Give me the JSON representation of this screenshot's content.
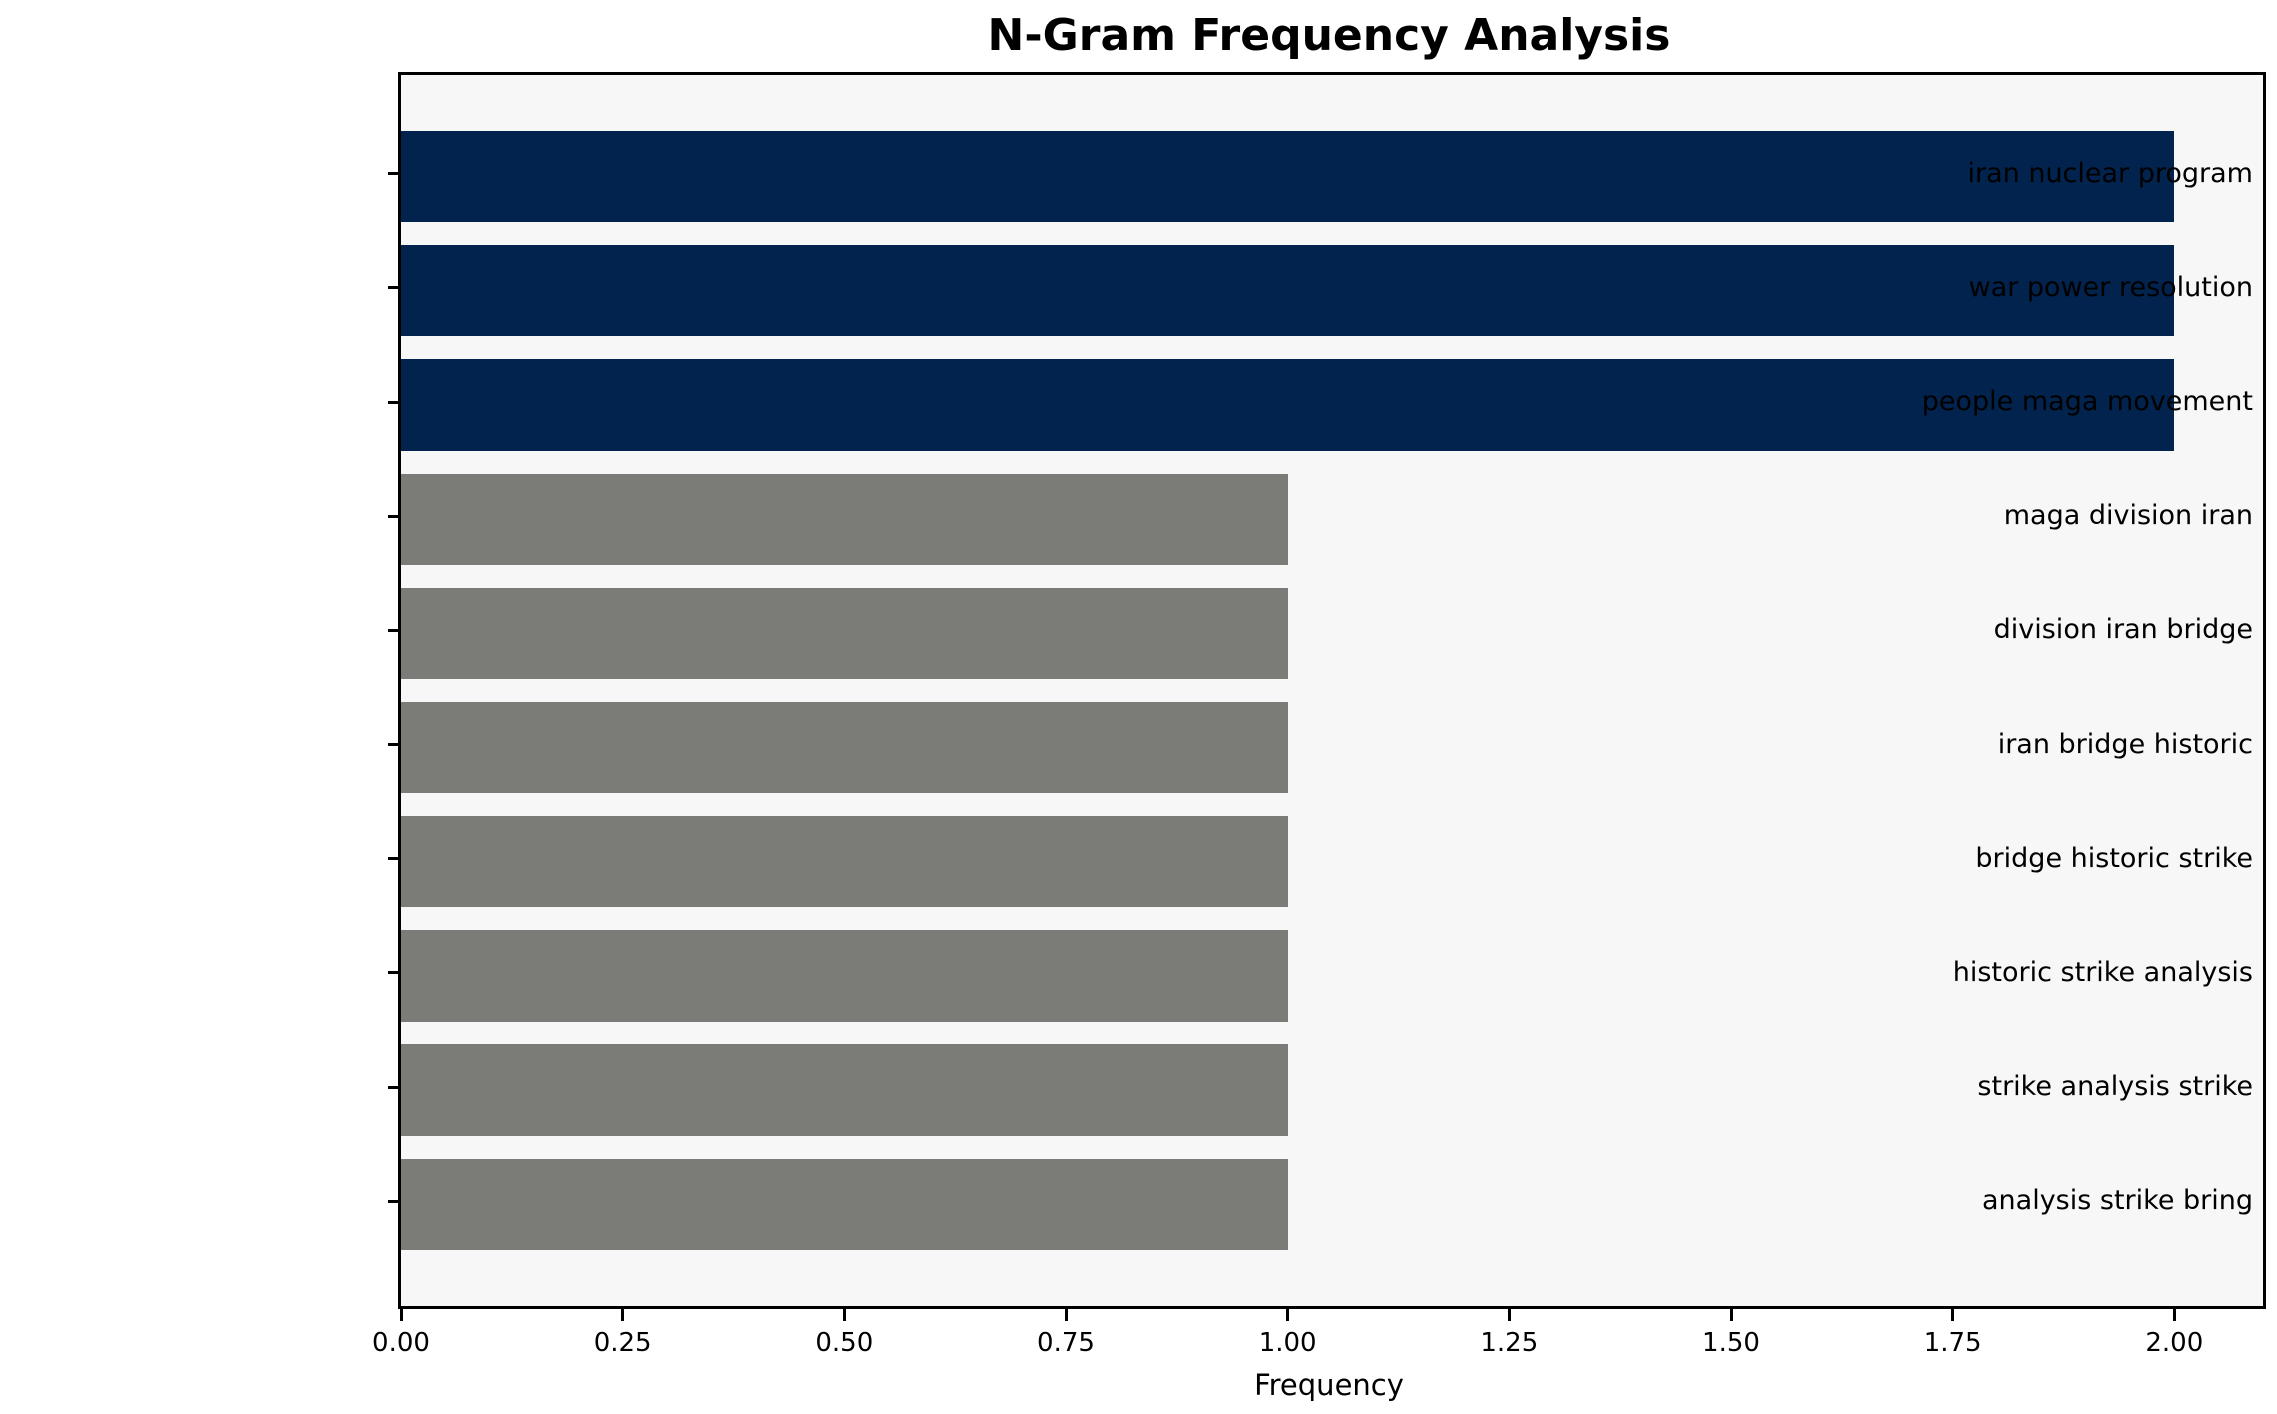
{
  "title": "N-Gram Frequency Analysis",
  "x_axis_label": "Frequency",
  "chart_data": {
    "type": "bar",
    "orientation": "horizontal",
    "title": "N-Gram Frequency Analysis",
    "xlabel": "Frequency",
    "ylabel": "",
    "categories": [
      "iran nuclear program",
      "war power resolution",
      "people maga movement",
      "maga division iran",
      "division iran bridge",
      "iran bridge historic",
      "bridge historic strike",
      "historic strike analysis",
      "strike analysis strike",
      "analysis strike bring"
    ],
    "values": [
      2,
      2,
      2,
      1,
      1,
      1,
      1,
      1,
      1,
      1
    ],
    "bar_colors": [
      "#02234d",
      "#02234d",
      "#02234d",
      "#7b7b78",
      "#7b7b78",
      "#7b7b78",
      "#7b7b78",
      "#7b7b78",
      "#7b7b78",
      "#7b7b78"
    ],
    "xlim": [
      0,
      2.1
    ],
    "xticks": [
      0.0,
      0.25,
      0.5,
      0.75,
      1.0,
      1.25,
      1.5,
      1.75,
      2.0
    ],
    "xtick_labels": [
      "0.00",
      "0.25",
      "0.50",
      "0.75",
      "1.00",
      "1.25",
      "1.50",
      "1.75",
      "2.00"
    ],
    "grid": false,
    "legend": "none",
    "plot_background": "#f7f7f7",
    "figure_background": "#ffffff",
    "highlight_color": "#02234d",
    "default_color": "#7b7b78",
    "bar_relative_width": 0.8
  }
}
